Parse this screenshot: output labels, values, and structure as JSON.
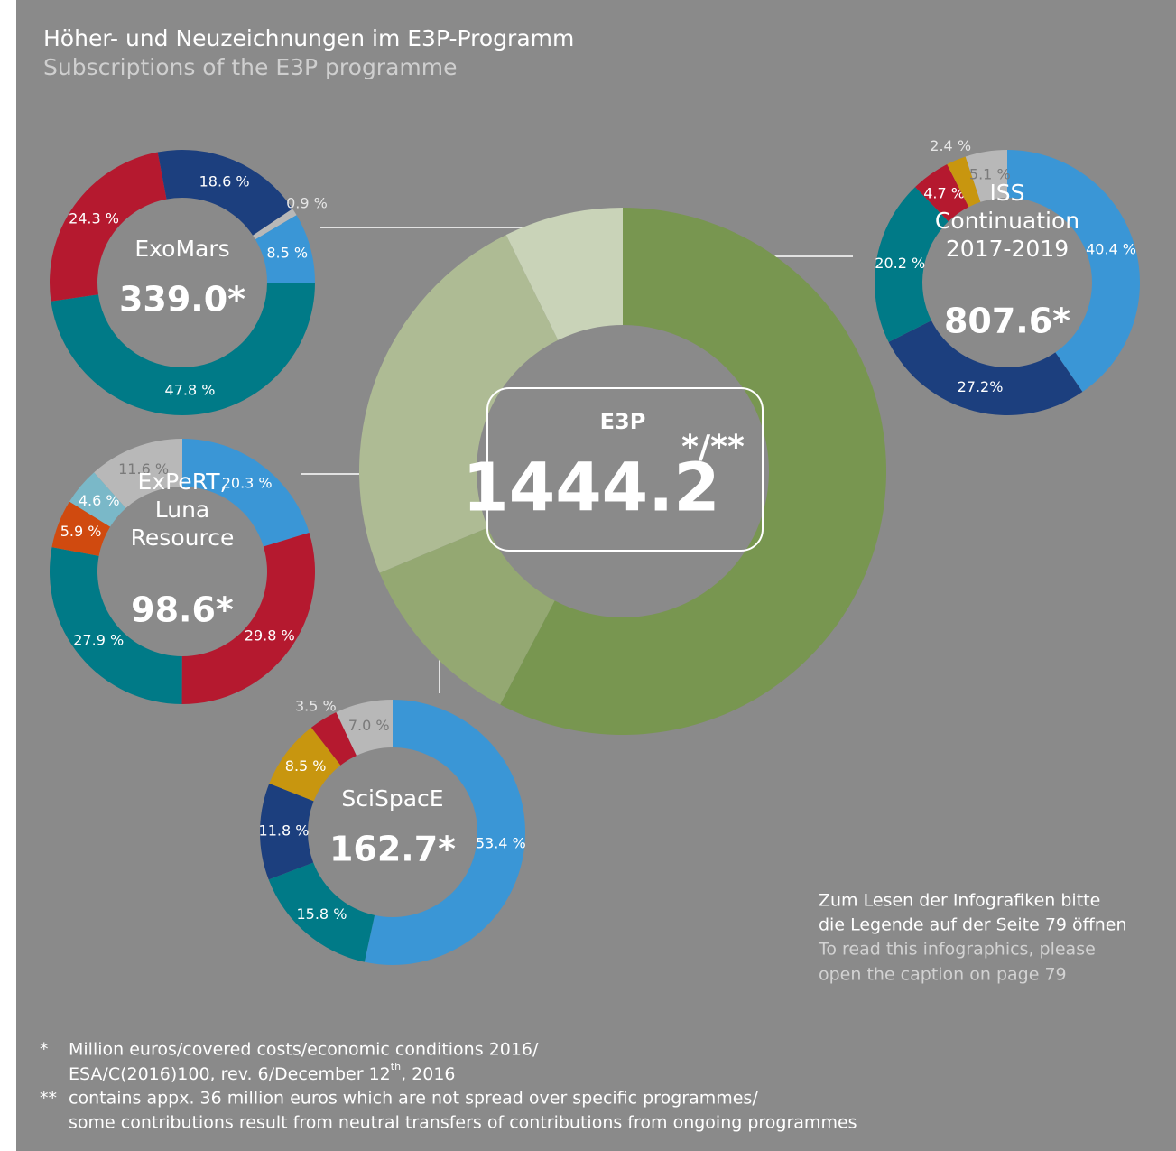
{
  "header": {
    "title": "Höher- und Neuzeichnungen im E3P-Programm",
    "subtitle": "Subscriptions of the E3P programme"
  },
  "chart_data": [
    {
      "type": "pie",
      "title": "E3P",
      "center_label": "1444.2",
      "center_suffix": "*/**",
      "values": [
        57.7,
        11,
        24,
        7.3
      ],
      "colors": [
        "#789650",
        "#94a872",
        "#aebb94",
        "#c9d3b8"
      ]
    },
    {
      "type": "pie",
      "name_lines": [
        "ExoMars"
      ],
      "center_label": "339.0*",
      "values": [
        47.8,
        24.3,
        18.6,
        0.9,
        8.5
      ],
      "value_labels": [
        "47.8 %",
        "24.3 %",
        "18.6 %",
        "0.9 %",
        "8.5 %"
      ],
      "colors": [
        "#007a87",
        "#b5192f",
        "#1c3f7e",
        "#b8b8b8",
        "#3a96d6"
      ]
    },
    {
      "type": "pie",
      "name_lines": [
        "ISS",
        "Continuation",
        "2017-2019"
      ],
      "center_label": "807.6*",
      "values": [
        40.4,
        27.2,
        20.2,
        4.7,
        2.4,
        5.1
      ],
      "value_labels": [
        "40.4 %",
        "27.2%",
        "20.2 %",
        "4.7 %",
        "2.4 %",
        "5.1 %"
      ],
      "colors": [
        "#3a96d6",
        "#1c3f7e",
        "#007a87",
        "#b5192f",
        "#c8960f",
        "#b8b8b8"
      ]
    },
    {
      "type": "pie",
      "name_lines": [
        "ExPeRT,",
        "Luna",
        "Resource"
      ],
      "center_label": "98.6*",
      "values": [
        20.3,
        29.8,
        27.9,
        5.9,
        4.6,
        11.6
      ],
      "value_labels": [
        "20.3 %",
        "29.8 %",
        "27.9 %",
        "5.9 %",
        "4.6 %",
        "11.6 %"
      ],
      "colors": [
        "#3a96d6",
        "#b5192f",
        "#007a87",
        "#d04a0f",
        "#7ab8c8",
        "#b8b8b8"
      ]
    },
    {
      "type": "pie",
      "name_lines": [
        "SciSpacE"
      ],
      "center_label": "162.7*",
      "values": [
        53.4,
        15.8,
        11.8,
        8.5,
        3.5,
        7.0
      ],
      "value_labels": [
        "53.4 %",
        "15.8 %",
        "11.8 %",
        "8.5 %",
        "3.5 %",
        "7.0 %"
      ],
      "colors": [
        "#3a96d6",
        "#007a87",
        "#1c3f7e",
        "#c8960f",
        "#b5192f",
        "#b8b8b8"
      ]
    }
  ],
  "note": {
    "lines": [
      "Zum Lesen der Infografiken bitte",
      "die Legende auf der Seite 79 öffnen",
      "To read this infographics, please",
      "open the caption on page 79"
    ]
  },
  "footnotes": [
    {
      "marker": "*",
      "line1": "Million euros/covered costs/economic conditions 2016/",
      "line2a": "ESA/C(2016)100, rev. 6/December 12",
      "line2sup": "th",
      "line2b": ", 2016"
    },
    {
      "marker": "**",
      "line1": "contains appx. 36 million euros which are not spread over specific programmes/",
      "line2": "some contributions result from neutral transfers of contributions from ongoing programmes"
    }
  ]
}
